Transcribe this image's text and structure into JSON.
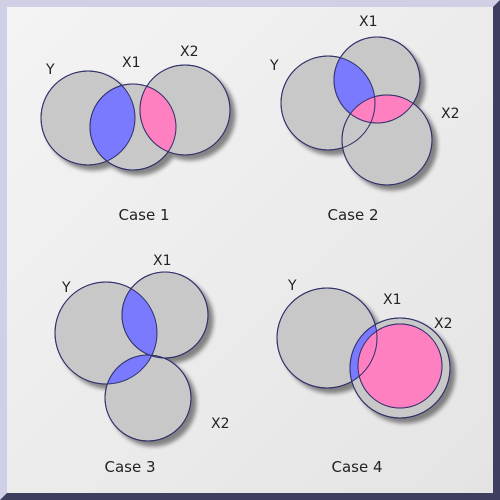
{
  "colors": {
    "circle_fill": "#c8c8c8",
    "circle_stroke": "#30306a",
    "overlap_y_x1": "#7a7aff",
    "overlap_x1_x2": "#ff80c0",
    "overlap_x2_y": "#7a7aff",
    "panel_bg": "#eeeeee"
  },
  "cases": [
    {
      "caption": "Case 1",
      "labels": {
        "y": "Y",
        "x1": "X1",
        "x2": "X2"
      },
      "overlaps": [
        "y_x1",
        "x1_x2"
      ]
    },
    {
      "caption": "Case 2",
      "labels": {
        "y": "Y",
        "x1": "X1",
        "x2": "X2"
      },
      "overlaps": [
        "y_x1",
        "x1_x2"
      ]
    },
    {
      "caption": "Case 3",
      "labels": {
        "y": "Y",
        "x1": "X1",
        "x2": "X2"
      },
      "overlaps": [
        "y_x1",
        "x2_y"
      ]
    },
    {
      "caption": "Case 4",
      "labels": {
        "y": "Y",
        "x1": "X1",
        "x2": "X2"
      },
      "overlaps": [
        "y_x1",
        "x1_x2"
      ]
    }
  ]
}
